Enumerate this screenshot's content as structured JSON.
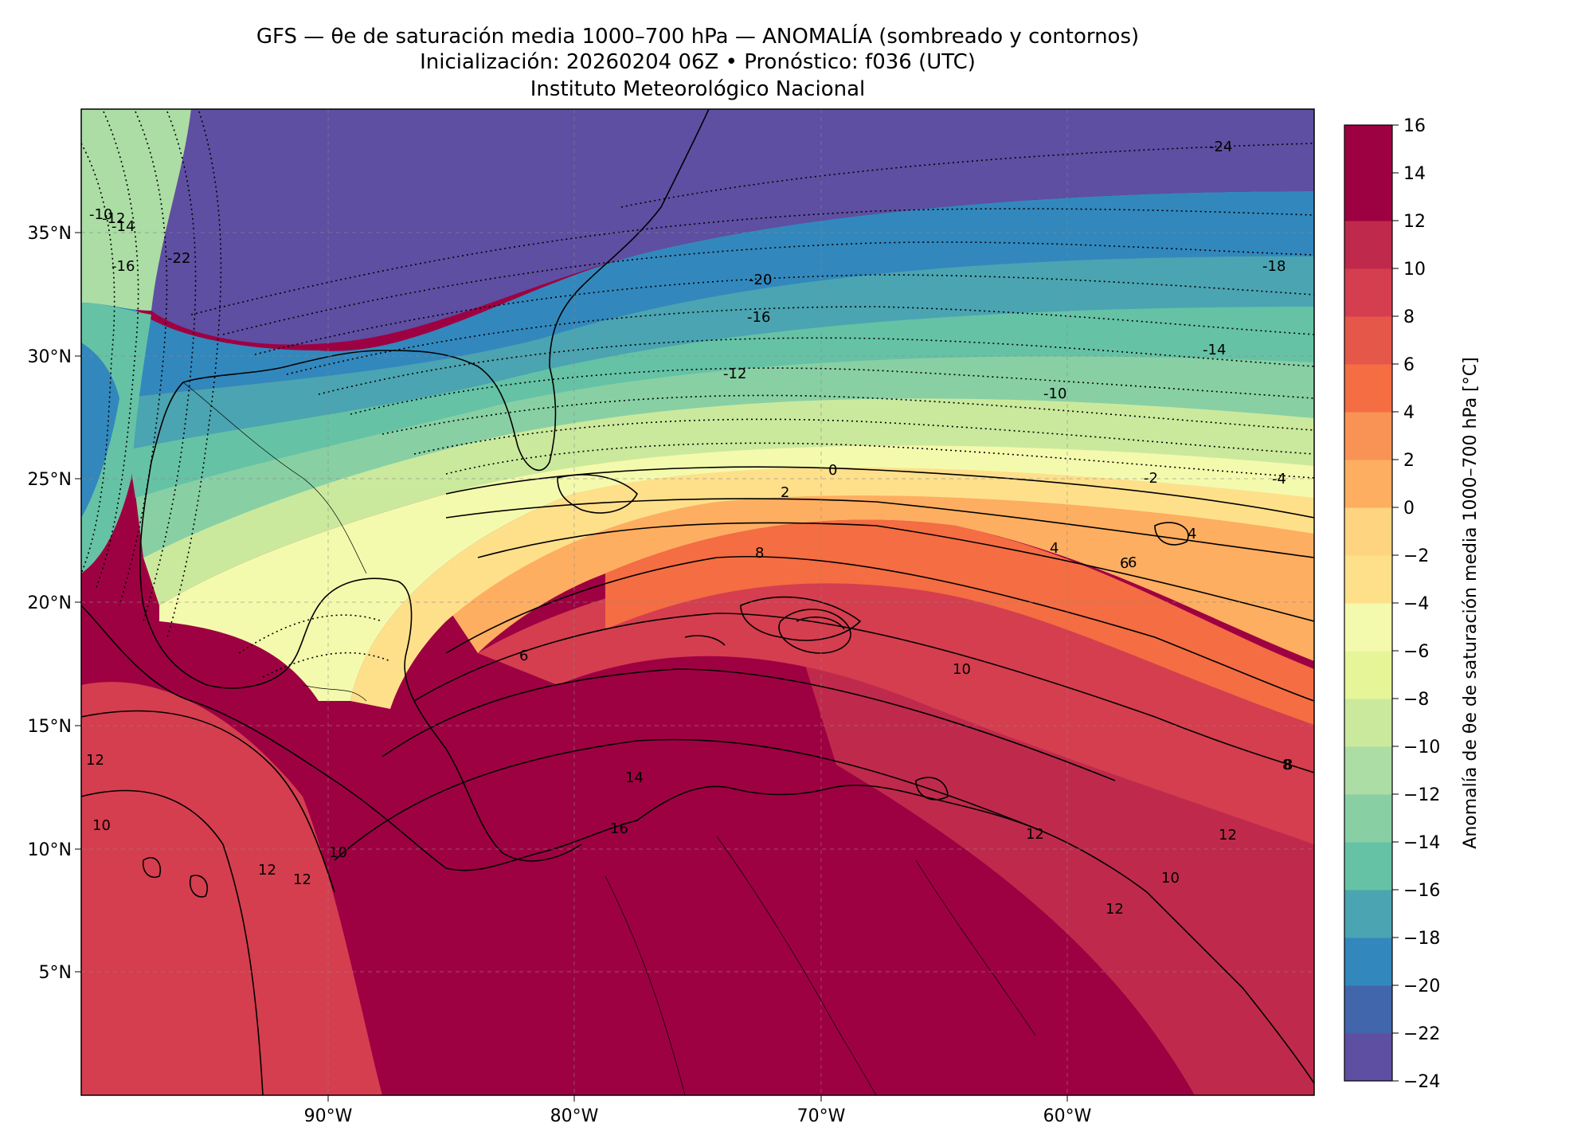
{
  "title": {
    "line1": "GFS — θe de saturación media 1000–700 hPa — ANOMALÍA (sombreado y contornos)",
    "line2": "Inicialización: 20260204 06Z   •   Pronóstico: f036 (UTC)",
    "line3": "Instituto Meteorológico Nacional"
  },
  "map": {
    "lon_range": [
      -100,
      -50
    ],
    "lat_range": [
      0,
      40
    ],
    "x_ticks": [
      {
        "lon": -90,
        "label": "90°W"
      },
      {
        "lon": -80,
        "label": "80°W"
      },
      {
        "lon": -70,
        "label": "70°W"
      },
      {
        "lon": -60,
        "label": "60°W"
      }
    ],
    "y_ticks": [
      {
        "lat": 35,
        "label": "35°N"
      },
      {
        "lat": 30,
        "label": "30°N"
      },
      {
        "lat": 25,
        "label": "25°N"
      },
      {
        "lat": 20,
        "label": "20°N"
      },
      {
        "lat": 15,
        "label": "15°N"
      },
      {
        "lat": 10,
        "label": "10°N"
      },
      {
        "lat": 5,
        "label": "5°N"
      }
    ],
    "gridlines": true
  },
  "colorbar": {
    "label": "Anomalía de θe de saturación media 1000–700 hPa [°C]",
    "levels": [
      -24,
      -22,
      -20,
      -18,
      -16,
      -14,
      -12,
      -10,
      -8,
      -6,
      -4,
      -2,
      0,
      2,
      4,
      6,
      8,
      10,
      12,
      14,
      16
    ],
    "tick_labels": [
      "16",
      "14",
      "12",
      "10",
      "8",
      "6",
      "4",
      "2",
      "0",
      "−2",
      "−4",
      "−6",
      "−8",
      "−10",
      "−12",
      "−14",
      "−16",
      "−18",
      "−20",
      "−22",
      "−24"
    ],
    "colors": [
      "#5e4fa2",
      "#4266ac",
      "#3288bd",
      "#4ba4b1",
      "#66c2a5",
      "#88d0a4",
      "#abdda4",
      "#cbe99d",
      "#e6f598",
      "#f4faad",
      "#fee08b",
      "#fed481",
      "#fdae61",
      "#f99355",
      "#f46d43",
      "#e55749",
      "#d53e4f",
      "#bf2a4c",
      "#9e0142",
      "#9e0142"
    ]
  },
  "contour_labels": [
    "-24",
    "-20",
    "-16",
    "-12",
    "-10",
    "-14",
    "-18",
    "-22",
    "-16",
    "-14",
    "-12",
    "-10",
    "0",
    "2",
    "-2",
    "-4",
    "4",
    "6",
    "8",
    "10",
    "12",
    "14",
    "16",
    "6",
    "8",
    "10",
    "12",
    "12",
    "12",
    "10",
    "10",
    "12",
    "8",
    "12",
    "4",
    "6"
  ]
}
